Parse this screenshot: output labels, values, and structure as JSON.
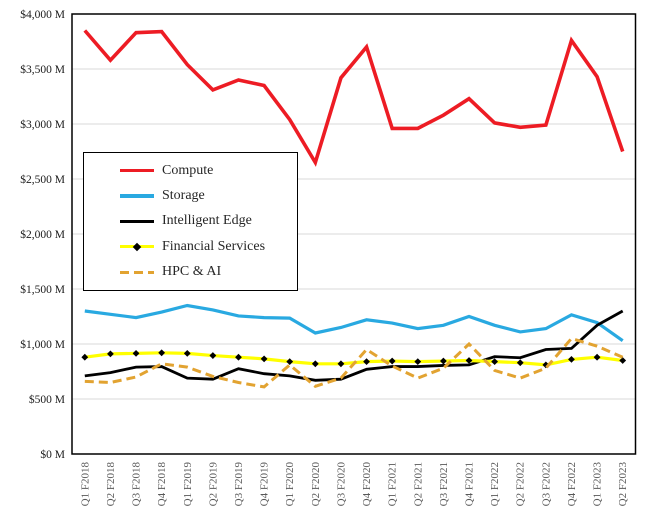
{
  "chart_data": {
    "type": "line",
    "categories": [
      "Q1 F2018",
      "Q2 F2018",
      "Q3 F2018",
      "Q4 F2018",
      "Q1 F2019",
      "Q2 F2019",
      "Q3 F2019",
      "Q4 F2019",
      "Q1 F2020",
      "Q2 F2020",
      "Q3 F2020",
      "Q4 F2020",
      "Q1 F2021",
      "Q2 F2021",
      "Q3 F2021",
      "Q4 F2021",
      "Q1 F2022",
      "Q2 F2022",
      "Q3 F2022",
      "Q4 F2022",
      "Q1 F2023",
      "Q2 F2023"
    ],
    "series": [
      {
        "name": "Compute",
        "color": "#ED1C24",
        "style": "solid",
        "marker": "none",
        "stroke_width": 3.6,
        "values": [
          3850,
          3580,
          3830,
          3840,
          3540,
          3310,
          3400,
          3350,
          3040,
          2650,
          3420,
          3700,
          2960,
          2960,
          3080,
          3230,
          3010,
          2970,
          2990,
          3760,
          3430,
          2750
        ]
      },
      {
        "name": "Storage",
        "color": "#29A9E1",
        "style": "solid",
        "marker": "none",
        "stroke_width": 3.2,
        "values": [
          1300,
          1270,
          1240,
          1290,
          1350,
          1310,
          1255,
          1240,
          1235,
          1100,
          1150,
          1220,
          1190,
          1140,
          1170,
          1250,
          1170,
          1110,
          1140,
          1265,
          1195,
          1030
        ]
      },
      {
        "name": "Intelligent Edge",
        "color": "#000000",
        "style": "solid",
        "marker": "none",
        "stroke_width": 2.8,
        "values": [
          710,
          740,
          790,
          795,
          690,
          680,
          775,
          730,
          710,
          670,
          680,
          770,
          795,
          795,
          805,
          810,
          885,
          875,
          950,
          960,
          1170,
          1300
        ]
      },
      {
        "name": "Financial Services",
        "color": "#FFFF00",
        "style": "solid",
        "marker": "diamond",
        "marker_color": "#000000",
        "stroke_width": 3.2,
        "values": [
          880,
          910,
          915,
          920,
          915,
          895,
          880,
          865,
          840,
          820,
          820,
          840,
          845,
          840,
          845,
          850,
          840,
          830,
          810,
          860,
          880,
          850
        ]
      },
      {
        "name": "HPC & AI",
        "color": "#E2A331",
        "style": "dashed",
        "marker": "none",
        "stroke_width": 3,
        "values": [
          660,
          650,
          700,
          820,
          790,
          705,
          650,
          610,
          810,
          615,
          690,
          950,
          800,
          690,
          780,
          1000,
          760,
          690,
          780,
          1050,
          980,
          880
        ]
      }
    ],
    "y_axis": {
      "min": 0,
      "max": 4000,
      "step": 500,
      "tick_labels": [
        "$0 M",
        "$500 M",
        "$1,000 M",
        "$1,500 M",
        "$2,000 M",
        "$2,500 M",
        "$3,000 M",
        "$3,500 M",
        "$4,000 M"
      ]
    },
    "x_axis": {
      "label_rotation": -90
    },
    "legend_position": "inside-left",
    "grid": true,
    "gridline_color": "#D9D9D9",
    "border_color": "#000000",
    "background": "#FFFFFF",
    "x_label_color": "#595959",
    "y_label_color": "#1A1A1A",
    "title": "",
    "xlabel": "",
    "ylabel": "",
    "ylim": [
      0,
      4000
    ]
  }
}
